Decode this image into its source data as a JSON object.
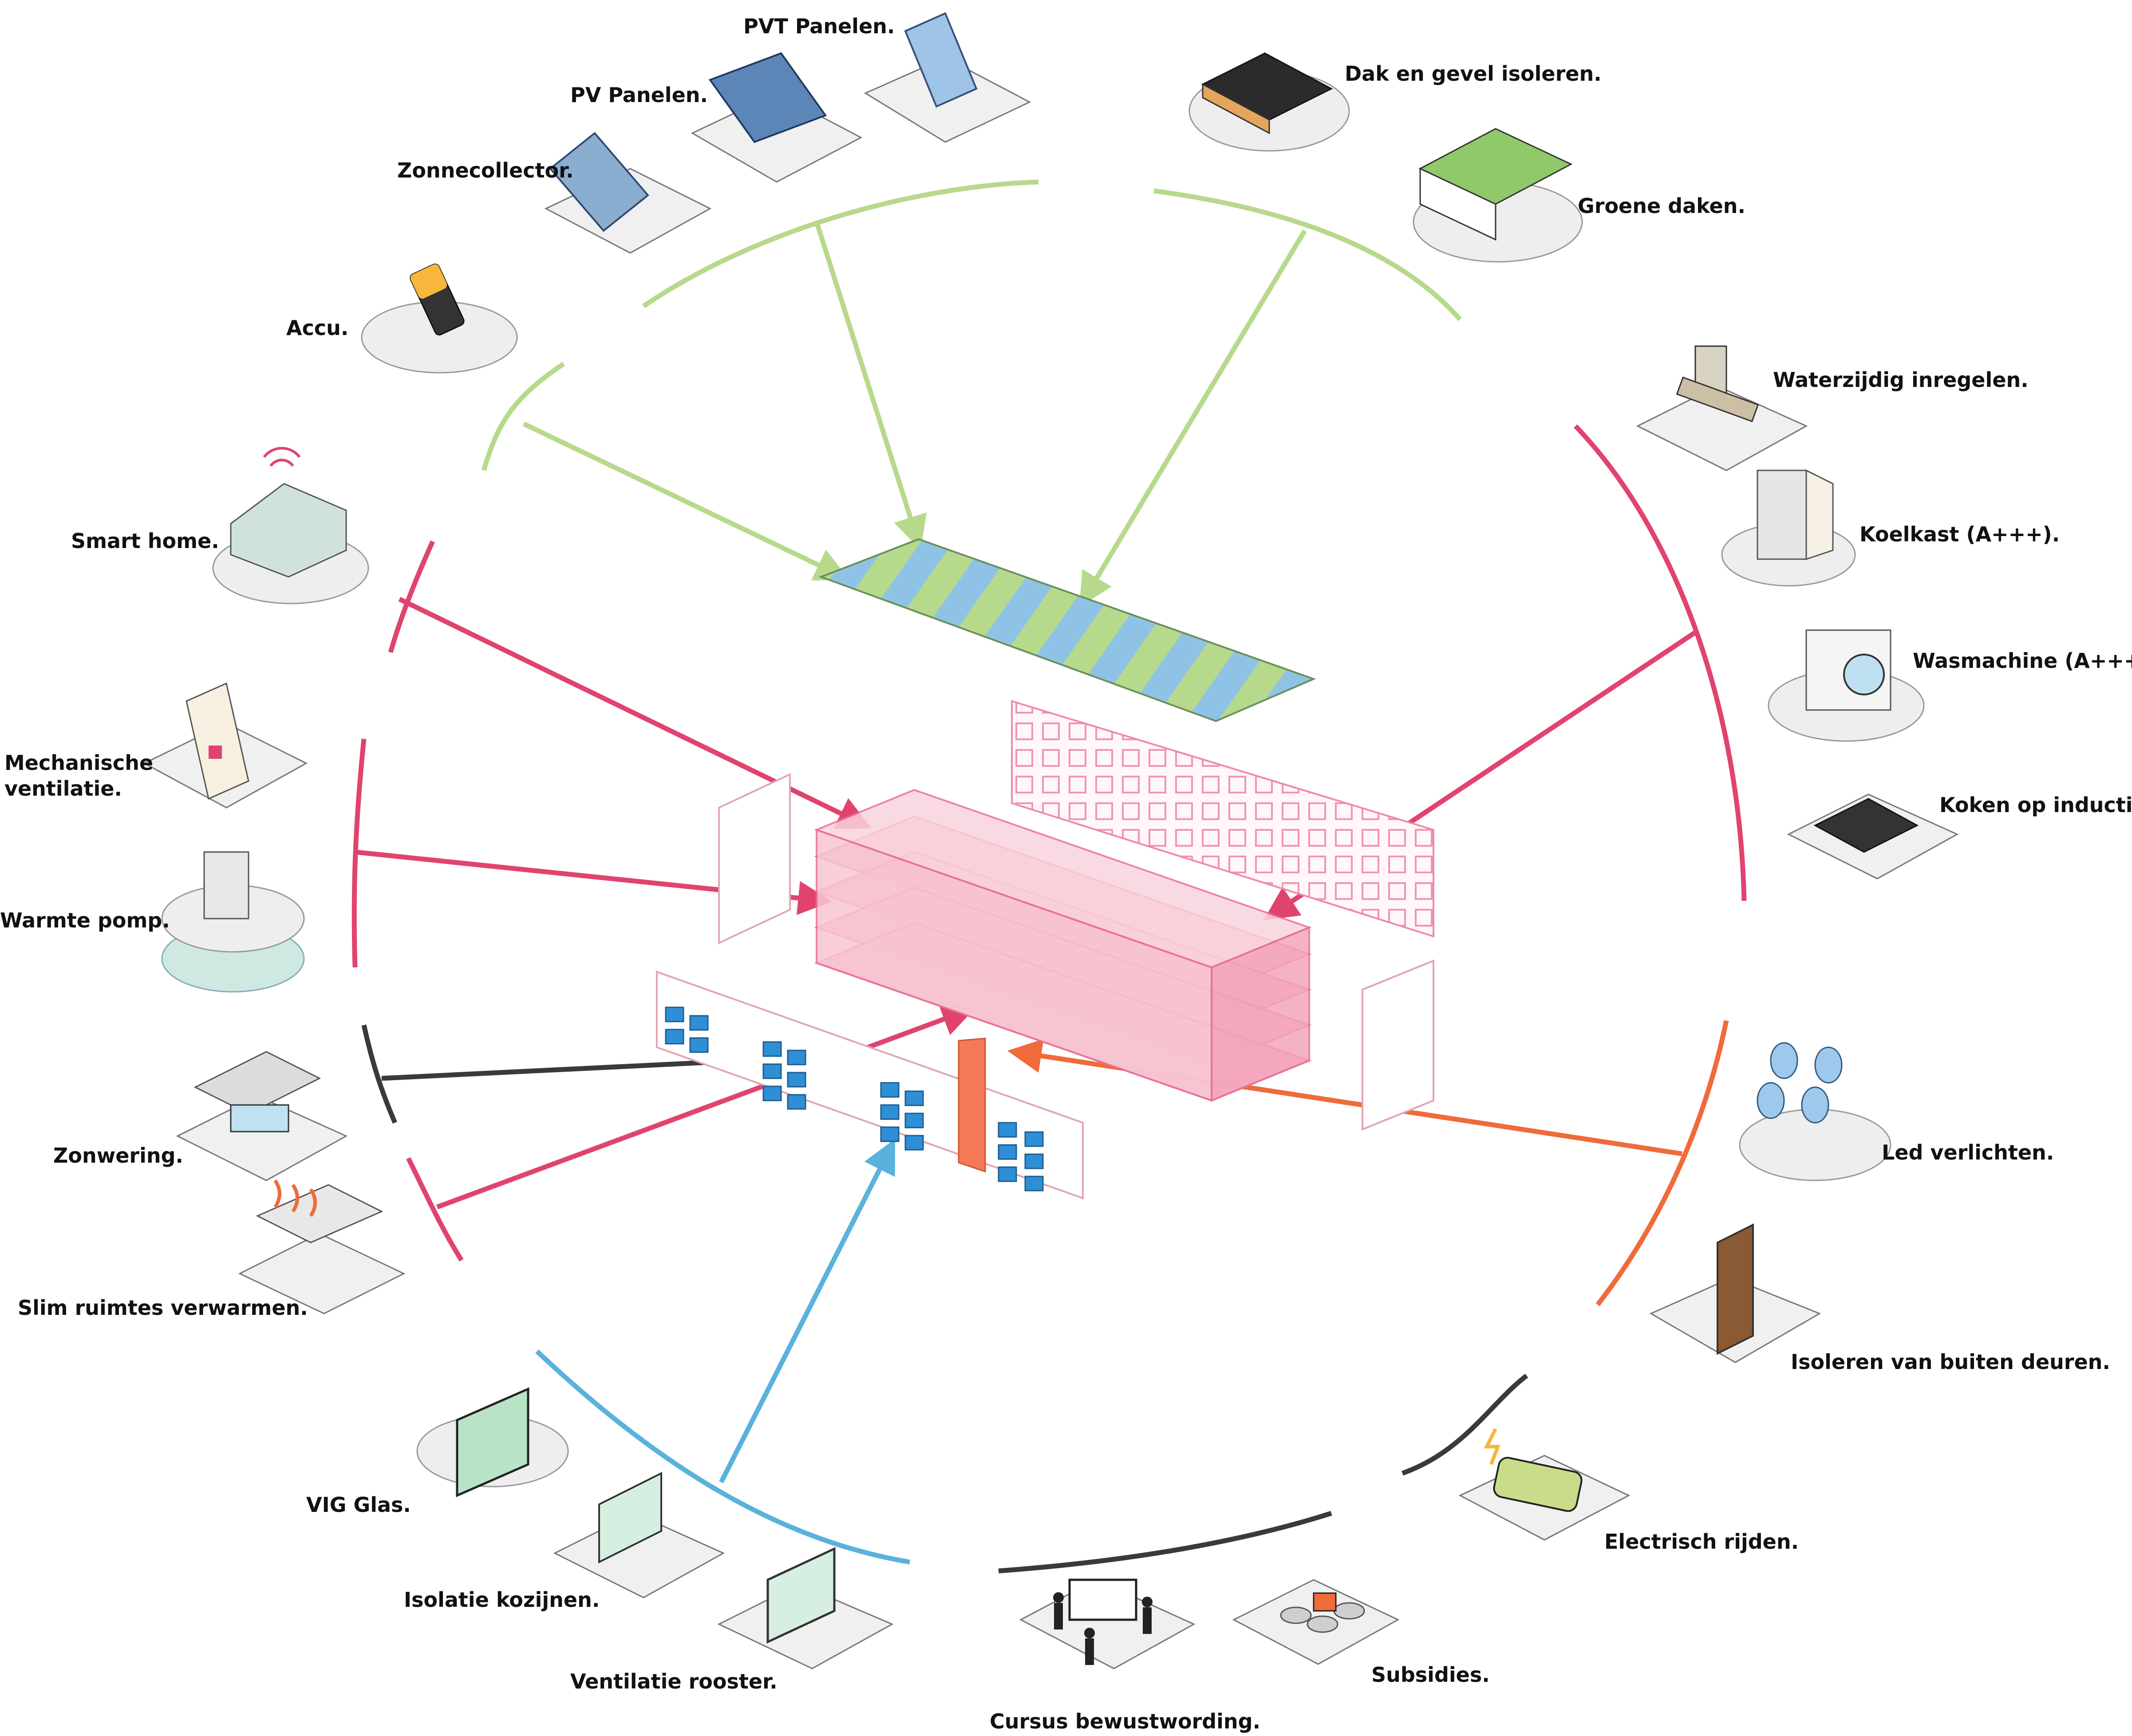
{
  "colors": {
    "green": "#b7d98c",
    "pink": "#e0446e",
    "blue": "#5ab2dc",
    "orange": "#f06a3a",
    "dark": "#3a3a3a",
    "building_pink": "#f5b3c4",
    "pad": "#e9e9e9"
  },
  "labels": {
    "pvt": "PVT Panelen.",
    "pv": "PV Panelen.",
    "zonnecollector": "Zonnecollector.",
    "accu": "Accu.",
    "smart_home": "Smart home.",
    "mech_vent_1": "Mechanische",
    "mech_vent_2": "ventilatie.",
    "warmtepomp": "Warmte pomp.",
    "zonwering": "Zonwering.",
    "slim": "Slim ruimtes verwarmen.",
    "vig": "VIG Glas.",
    "kozijnen": "Isolatie kozijnen.",
    "rooster": "Ventilatie rooster.",
    "cursus": "Cursus bewustwording.",
    "subsidies": "Subsidies.",
    "electrisch": "Electrisch rijden.",
    "deuren": "Isoleren van buiten deuren.",
    "led": "Led verlichten.",
    "koken": "Koken op inductie.",
    "wasmachine": "Wasmachine (A+++).",
    "koelkast": "Koelkast (A+++).",
    "waterzijdig": "Waterzijdig inregelen.",
    "groene_daken": "Groene daken.",
    "dak_gevel": "Dak en gevel isoleren."
  },
  "icons": {
    "pvt": "pvt-panel-icon",
    "pv": "pv-panel-icon",
    "zonnecollector": "solar-collector-icon",
    "accu": "battery-icon",
    "smart_home": "smart-home-wifi-icon",
    "mech_vent": "ventilation-unit-icon",
    "warmtepomp": "heat-pump-icon",
    "zonwering": "sun-shade-icon",
    "slim": "room-heating-icon",
    "vig": "glass-pane-icon",
    "kozijnen": "window-frame-icon",
    "rooster": "vent-grille-icon",
    "cursus": "presentation-people-icon",
    "subsidies": "coins-icon",
    "electrisch": "electric-car-icon",
    "deuren": "door-icon",
    "led": "led-bulbs-icon",
    "koken": "induction-hob-icon",
    "wasmachine": "washing-machine-icon",
    "koelkast": "fridge-icon",
    "waterzijdig": "valve-icon",
    "groene_daken": "green-roof-icon",
    "dak_gevel": "roof-insulation-icon"
  }
}
